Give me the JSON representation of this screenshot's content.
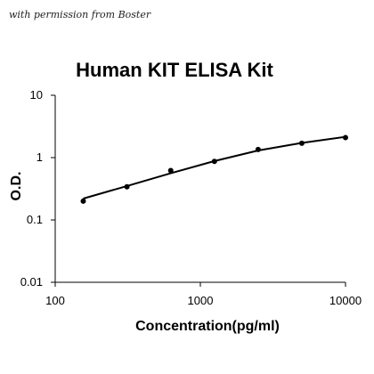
{
  "watermark": "with permission from Boster",
  "chart_data": {
    "type": "scatter",
    "title": "Human KIT ELISA Kit",
    "xlabel": "Concentration(pg/ml)",
    "ylabel": "O.D.",
    "x_scale": "log",
    "y_scale": "log",
    "xlim": [
      100,
      10000
    ],
    "ylim": [
      0.01,
      10
    ],
    "x_ticks": [
      {
        "value": 100,
        "label": "100"
      },
      {
        "value": 1000,
        "label": "1000"
      },
      {
        "value": 10000,
        "label": "10000"
      }
    ],
    "y_ticks": [
      {
        "value": 0.01,
        "label": "0.01"
      },
      {
        "value": 0.1,
        "label": "0.1"
      },
      {
        "value": 1,
        "label": "1"
      },
      {
        "value": 10,
        "label": "10"
      }
    ],
    "grid": false,
    "legend": "none",
    "series": [
      {
        "points": [
          {
            "x": 156,
            "y": 0.2
          },
          {
            "x": 312,
            "y": 0.34
          },
          {
            "x": 625,
            "y": 0.62
          },
          {
            "x": 1250,
            "y": 0.87
          },
          {
            "x": 2500,
            "y": 1.35
          },
          {
            "x": 5000,
            "y": 1.7
          },
          {
            "x": 10000,
            "y": 2.1
          }
        ],
        "fit_curve": [
          {
            "x": 156,
            "y": 0.22
          },
          {
            "x": 312,
            "y": 0.35
          },
          {
            "x": 625,
            "y": 0.56
          },
          {
            "x": 1250,
            "y": 0.88
          },
          {
            "x": 2500,
            "y": 1.3
          },
          {
            "x": 5000,
            "y": 1.72
          },
          {
            "x": 10000,
            "y": 2.15
          }
        ],
        "color": "#000000"
      }
    ]
  }
}
